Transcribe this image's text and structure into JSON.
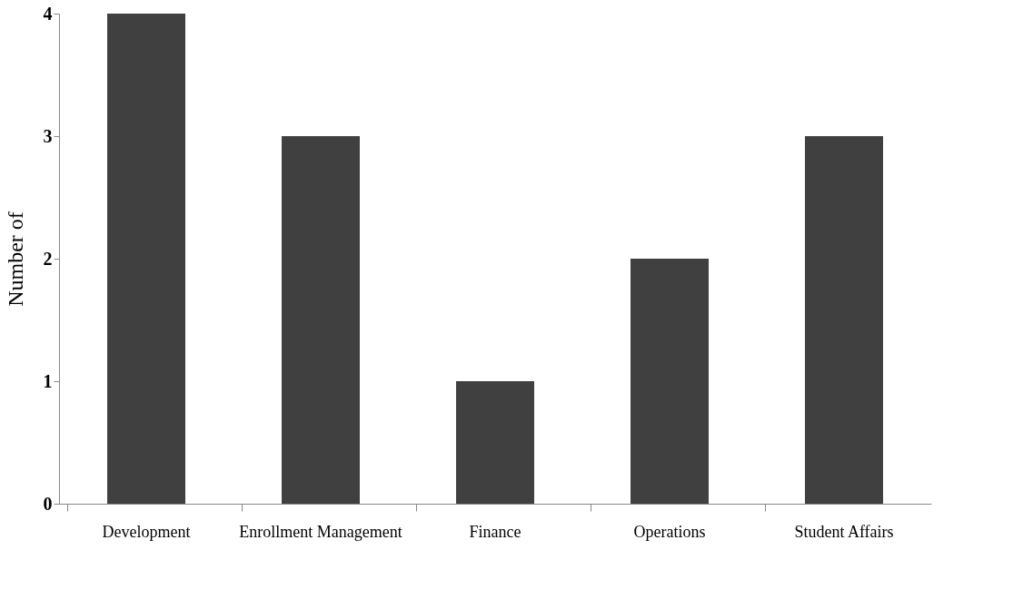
{
  "chart_data": {
    "type": "bar",
    "ylabel": "Number of",
    "categories": [
      "Development",
      "Enrollment Management",
      "Finance",
      "Operations",
      "Student Affairs"
    ],
    "values": [
      4,
      3,
      1,
      2,
      3
    ],
    "color": "#404040",
    "ylim": [
      0,
      4
    ],
    "yticks": [
      0,
      1,
      2,
      3,
      4
    ],
    "grid": false
  }
}
